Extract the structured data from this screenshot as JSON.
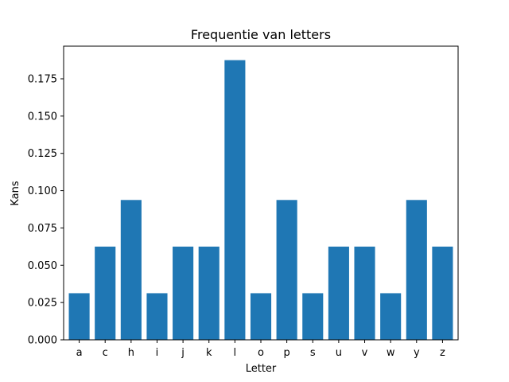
{
  "chart_data": {
    "type": "bar",
    "title": "Frequentie van letters",
    "xlabel": "Letter",
    "ylabel": "Kans",
    "categories": [
      "a",
      "c",
      "h",
      "i",
      "j",
      "k",
      "l",
      "o",
      "p",
      "s",
      "u",
      "v",
      "w",
      "y",
      "z"
    ],
    "values": [
      0.03125,
      0.0625,
      0.09375,
      0.03125,
      0.0625,
      0.0625,
      0.1875,
      0.03125,
      0.09375,
      0.03125,
      0.0625,
      0.0625,
      0.03125,
      0.09375,
      0.0625
    ],
    "ylim": [
      0,
      0.196875
    ],
    "yticks": [
      "0.000",
      "0.025",
      "0.050",
      "0.075",
      "0.100",
      "0.125",
      "0.150",
      "0.175"
    ],
    "bar_color": "#1f77b4",
    "grid": false,
    "legend": "none"
  }
}
